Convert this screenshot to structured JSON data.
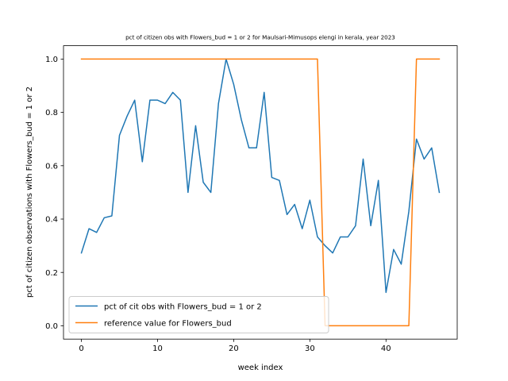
{
  "chart_data": {
    "type": "line",
    "title": "pct of citizen obs with Flowers_bud = 1 or 2 for Maulsari-Mimusops elengi in kerala, year 2023",
    "xlabel": "week index",
    "ylabel": "pct of citizen observations with Flowers_bud = 1 or 2",
    "xlim": [
      -2.35,
      49.35
    ],
    "ylim": [
      -0.05,
      1.05
    ],
    "x_ticks": [
      0,
      10,
      20,
      30,
      40
    ],
    "y_ticks": [
      0.0,
      0.2,
      0.4,
      0.6,
      0.8,
      1.0
    ],
    "x_tick_labels": [
      "0",
      "10",
      "20",
      "30",
      "40"
    ],
    "y_tick_labels": [
      "0.0",
      "0.2",
      "0.4",
      "0.6",
      "0.8",
      "1.0"
    ],
    "grid": false,
    "legend_position": "lower-left",
    "series": [
      {
        "name": "pct of cit obs with Flowers_bud = 1 or 2",
        "color": "#1f77b4",
        "x": [
          0,
          1,
          2,
          3,
          4,
          5,
          6,
          7,
          8,
          9,
          10,
          11,
          12,
          13,
          14,
          15,
          16,
          17,
          18,
          19,
          20,
          21,
          22,
          23,
          24,
          25,
          26,
          27,
          28,
          29,
          30,
          31,
          32,
          33,
          34,
          35,
          36,
          37,
          38,
          39,
          40,
          41,
          42,
          43,
          44,
          45,
          46,
          47
        ],
        "y": [
          0.273,
          0.364,
          0.35,
          0.405,
          0.412,
          0.714,
          0.786,
          0.846,
          0.615,
          0.846,
          0.846,
          0.833,
          0.875,
          0.846,
          0.5,
          0.75,
          0.538,
          0.5,
          0.833,
          1.0,
          0.905,
          0.773,
          0.667,
          0.667,
          0.875,
          0.556,
          0.545,
          0.417,
          0.455,
          0.364,
          0.471,
          0.333,
          0.3,
          0.273,
          0.333,
          0.333,
          0.375,
          0.625,
          0.375,
          0.545,
          0.125,
          0.286,
          0.231,
          0.429,
          0.7,
          0.625,
          0.667,
          0.5
        ]
      },
      {
        "name": "reference value for Flowers_bud",
        "color": "#ff7f0e",
        "x": [
          0,
          1,
          2,
          3,
          4,
          5,
          6,
          7,
          8,
          9,
          10,
          11,
          12,
          13,
          14,
          15,
          16,
          17,
          18,
          19,
          20,
          21,
          22,
          23,
          24,
          25,
          26,
          27,
          28,
          29,
          30,
          31,
          32,
          33,
          34,
          35,
          36,
          37,
          38,
          39,
          40,
          41,
          42,
          43,
          44,
          45,
          46,
          47
        ],
        "y": [
          1,
          1,
          1,
          1,
          1,
          1,
          1,
          1,
          1,
          1,
          1,
          1,
          1,
          1,
          1,
          1,
          1,
          1,
          1,
          1,
          1,
          1,
          1,
          1,
          1,
          1,
          1,
          1,
          1,
          1,
          1,
          1,
          0,
          0,
          0,
          0,
          0,
          0,
          0,
          0,
          0,
          0,
          0,
          0,
          1,
          1,
          1,
          1
        ]
      }
    ]
  }
}
